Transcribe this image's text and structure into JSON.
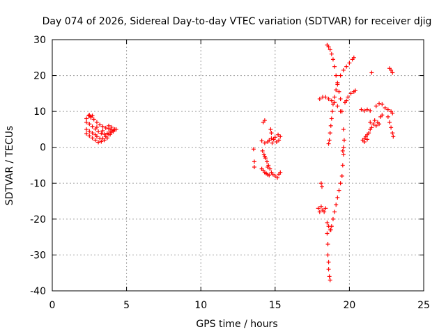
{
  "chart_data": {
    "type": "scatter",
    "title": "Day 074 of 2026, Sidereal Day-to-day VTEC variation (SDTVAR) for receiver djig",
    "xlabel": "GPS time / hours",
    "ylabel": "SDTVAR / TECUs",
    "xlim": [
      0,
      25
    ],
    "ylim": [
      -40,
      30
    ],
    "xticks": [
      0,
      5,
      10,
      15,
      20,
      25
    ],
    "yticks": [
      -40,
      -30,
      -20,
      -10,
      0,
      10,
      20,
      30
    ],
    "grid": true,
    "marker": "+",
    "color": "#ff0000",
    "series": [
      {
        "values": [
          [
            2.3,
            8.0
          ],
          [
            2.45,
            8.8
          ],
          [
            2.6,
            8.6
          ],
          [
            2.8,
            7.8
          ],
          [
            3.0,
            7.0
          ],
          [
            3.2,
            6.3
          ],
          [
            3.4,
            5.8
          ],
          [
            3.6,
            5.4
          ],
          [
            3.8,
            5.2
          ],
          [
            4.0,
            5.0
          ],
          [
            4.2,
            5.0
          ],
          [
            2.3,
            7.0
          ],
          [
            2.5,
            6.5
          ],
          [
            2.7,
            5.8
          ],
          [
            2.9,
            5.1
          ],
          [
            3.1,
            4.4
          ],
          [
            3.3,
            3.9
          ],
          [
            3.5,
            3.6
          ],
          [
            3.7,
            3.9
          ],
          [
            3.9,
            4.3
          ],
          [
            4.1,
            4.7
          ],
          [
            2.3,
            5.0
          ],
          [
            2.5,
            4.5
          ],
          [
            2.7,
            4.0
          ],
          [
            2.9,
            3.5
          ],
          [
            3.0,
            3.0
          ],
          [
            3.2,
            2.5
          ],
          [
            3.4,
            2.5
          ],
          [
            3.6,
            3.0
          ],
          [
            3.8,
            3.6
          ],
          [
            4.0,
            4.2
          ],
          [
            4.2,
            5.0
          ],
          [
            2.3,
            3.8
          ],
          [
            2.5,
            3.2
          ],
          [
            2.7,
            2.6
          ],
          [
            2.9,
            2.0
          ],
          [
            3.1,
            1.4
          ],
          [
            3.3,
            1.6
          ],
          [
            3.5,
            2.0
          ],
          [
            3.7,
            2.6
          ],
          [
            3.9,
            3.6
          ],
          [
            4.1,
            4.4
          ],
          [
            4.3,
            5.0
          ],
          [
            2.5,
            9.0
          ],
          [
            2.6,
            8.3
          ],
          [
            2.7,
            8.8
          ],
          [
            3.0,
            5.6
          ],
          [
            3.4,
            4.6
          ],
          [
            3.8,
            6.0
          ],
          [
            4.0,
            5.6
          ]
        ]
      },
      {
        "values": [
          [
            13.55,
            -0.5
          ],
          [
            13.6,
            -4.0
          ],
          [
            13.6,
            -5.5
          ],
          [
            14.2,
            7.0
          ],
          [
            14.3,
            7.5
          ],
          [
            14.1,
            1.8
          ],
          [
            14.3,
            1.2
          ],
          [
            14.5,
            1.5
          ],
          [
            14.6,
            2.0
          ],
          [
            14.75,
            2.5
          ],
          [
            14.9,
            2.2
          ],
          [
            15.1,
            1.5
          ],
          [
            15.25,
            2.0
          ],
          [
            15.35,
            3.0
          ],
          [
            15.2,
            3.5
          ],
          [
            15.0,
            2.8
          ],
          [
            14.8,
            1.2
          ],
          [
            14.7,
            5.0
          ],
          [
            14.75,
            4.0
          ],
          [
            14.15,
            -1.0
          ],
          [
            14.25,
            -2.0
          ],
          [
            14.35,
            -3.0
          ],
          [
            14.45,
            -4.0
          ],
          [
            14.55,
            -5.0
          ],
          [
            14.65,
            -6.0
          ],
          [
            14.75,
            -7.0
          ],
          [
            14.85,
            -7.5
          ],
          [
            15.0,
            -8.0
          ],
          [
            15.15,
            -8.5
          ],
          [
            15.25,
            -7.5
          ],
          [
            15.35,
            -7.0
          ],
          [
            14.1,
            -6.0
          ],
          [
            14.2,
            -6.5
          ],
          [
            14.3,
            -7.0
          ],
          [
            14.4,
            -7.3
          ],
          [
            14.5,
            -7.6
          ],
          [
            14.6,
            -7.8
          ],
          [
            14.3,
            -2.5
          ],
          [
            14.5,
            -5.5
          ]
        ]
      },
      {
        "values": [
          [
            18.5,
            28.5
          ],
          [
            18.6,
            28.0
          ],
          [
            18.7,
            27.2
          ],
          [
            18.8,
            26.0
          ],
          [
            18.9,
            24.5
          ],
          [
            19.0,
            22.5
          ],
          [
            19.1,
            20.0
          ],
          [
            19.2,
            17.5
          ],
          [
            19.3,
            15.5
          ],
          [
            19.4,
            13.5
          ],
          [
            19.5,
            10.0
          ],
          [
            19.6,
            5.0
          ],
          [
            19.65,
            2.0
          ],
          [
            19.6,
            0.0
          ],
          [
            19.55,
            -1.0
          ],
          [
            19.0,
            14.0
          ],
          [
            19.1,
            16.0
          ],
          [
            19.2,
            18.0
          ],
          [
            19.4,
            20.0
          ],
          [
            19.6,
            21.5
          ],
          [
            19.8,
            22.5
          ],
          [
            20.0,
            23.5
          ],
          [
            20.2,
            24.5
          ],
          [
            20.3,
            25.0
          ],
          [
            19.7,
            12.5
          ],
          [
            19.8,
            13.0
          ],
          [
            19.9,
            14.0
          ],
          [
            20.1,
            15.0
          ],
          [
            20.3,
            15.5
          ],
          [
            20.4,
            15.8
          ],
          [
            18.0,
            13.5
          ],
          [
            18.2,
            14.0
          ],
          [
            18.4,
            14.0
          ],
          [
            18.6,
            13.5
          ],
          [
            18.8,
            13.0
          ],
          [
            19.0,
            12.5
          ],
          [
            19.2,
            11.5
          ],
          [
            19.4,
            10.0
          ],
          [
            18.9,
            12.0
          ],
          [
            18.85,
            10.0
          ],
          [
            18.8,
            8.0
          ],
          [
            18.75,
            6.0
          ],
          [
            18.7,
            4.0
          ],
          [
            18.65,
            2.0
          ],
          [
            18.6,
            1.0
          ],
          [
            19.6,
            -2.0
          ],
          [
            19.55,
            -5.0
          ],
          [
            19.5,
            -8.0
          ],
          [
            19.4,
            -10.0
          ],
          [
            19.3,
            -12.0
          ],
          [
            19.2,
            -14.0
          ],
          [
            19.1,
            -16.0
          ],
          [
            19.0,
            -18.0
          ],
          [
            18.9,
            -20.0
          ],
          [
            18.8,
            -22.0
          ],
          [
            18.75,
            -23.0
          ],
          [
            18.1,
            -10.0
          ],
          [
            18.15,
            -11.0
          ],
          [
            17.9,
            -17.0
          ],
          [
            18.0,
            -18.0
          ],
          [
            18.1,
            -16.5
          ],
          [
            18.2,
            -17.5
          ],
          [
            18.3,
            -18.0
          ],
          [
            18.4,
            -17.0
          ],
          [
            18.5,
            -21.0
          ],
          [
            18.5,
            -24.0
          ],
          [
            18.55,
            -27.0
          ],
          [
            18.55,
            -30.0
          ],
          [
            18.6,
            -32.0
          ],
          [
            18.6,
            -34.0
          ],
          [
            18.65,
            -36.0
          ],
          [
            18.7,
            -37.0
          ],
          [
            18.6,
            -22.0
          ],
          [
            18.7,
            -23.0
          ]
        ]
      },
      {
        "values": [
          [
            21.5,
            20.8
          ],
          [
            22.7,
            22.0
          ],
          [
            22.8,
            21.5
          ],
          [
            22.9,
            20.8
          ],
          [
            20.8,
            10.5
          ],
          [
            21.0,
            10.2
          ],
          [
            21.2,
            10.5
          ],
          [
            21.4,
            10.2
          ],
          [
            21.8,
            11.5
          ],
          [
            22.0,
            12.2
          ],
          [
            22.2,
            12.0
          ],
          [
            22.4,
            11.0
          ],
          [
            22.6,
            10.5
          ],
          [
            22.8,
            10.0
          ],
          [
            22.9,
            9.5
          ],
          [
            22.6,
            8.5
          ],
          [
            22.7,
            7.0
          ],
          [
            22.8,
            5.5
          ],
          [
            22.9,
            4.0
          ],
          [
            22.95,
            3.0
          ],
          [
            21.4,
            7.0
          ],
          [
            21.6,
            6.5
          ],
          [
            21.8,
            6.0
          ],
          [
            22.0,
            6.5
          ],
          [
            21.5,
            5.5
          ],
          [
            21.7,
            7.5
          ],
          [
            21.9,
            7.0
          ],
          [
            22.1,
            8.5
          ],
          [
            22.2,
            9.0
          ],
          [
            20.9,
            2.0
          ],
          [
            21.0,
            2.5
          ],
          [
            21.1,
            3.0
          ],
          [
            21.2,
            3.5
          ],
          [
            21.3,
            4.0
          ],
          [
            21.4,
            5.0
          ],
          [
            21.0,
            1.5
          ],
          [
            21.2,
            2.2
          ]
        ]
      }
    ]
  }
}
